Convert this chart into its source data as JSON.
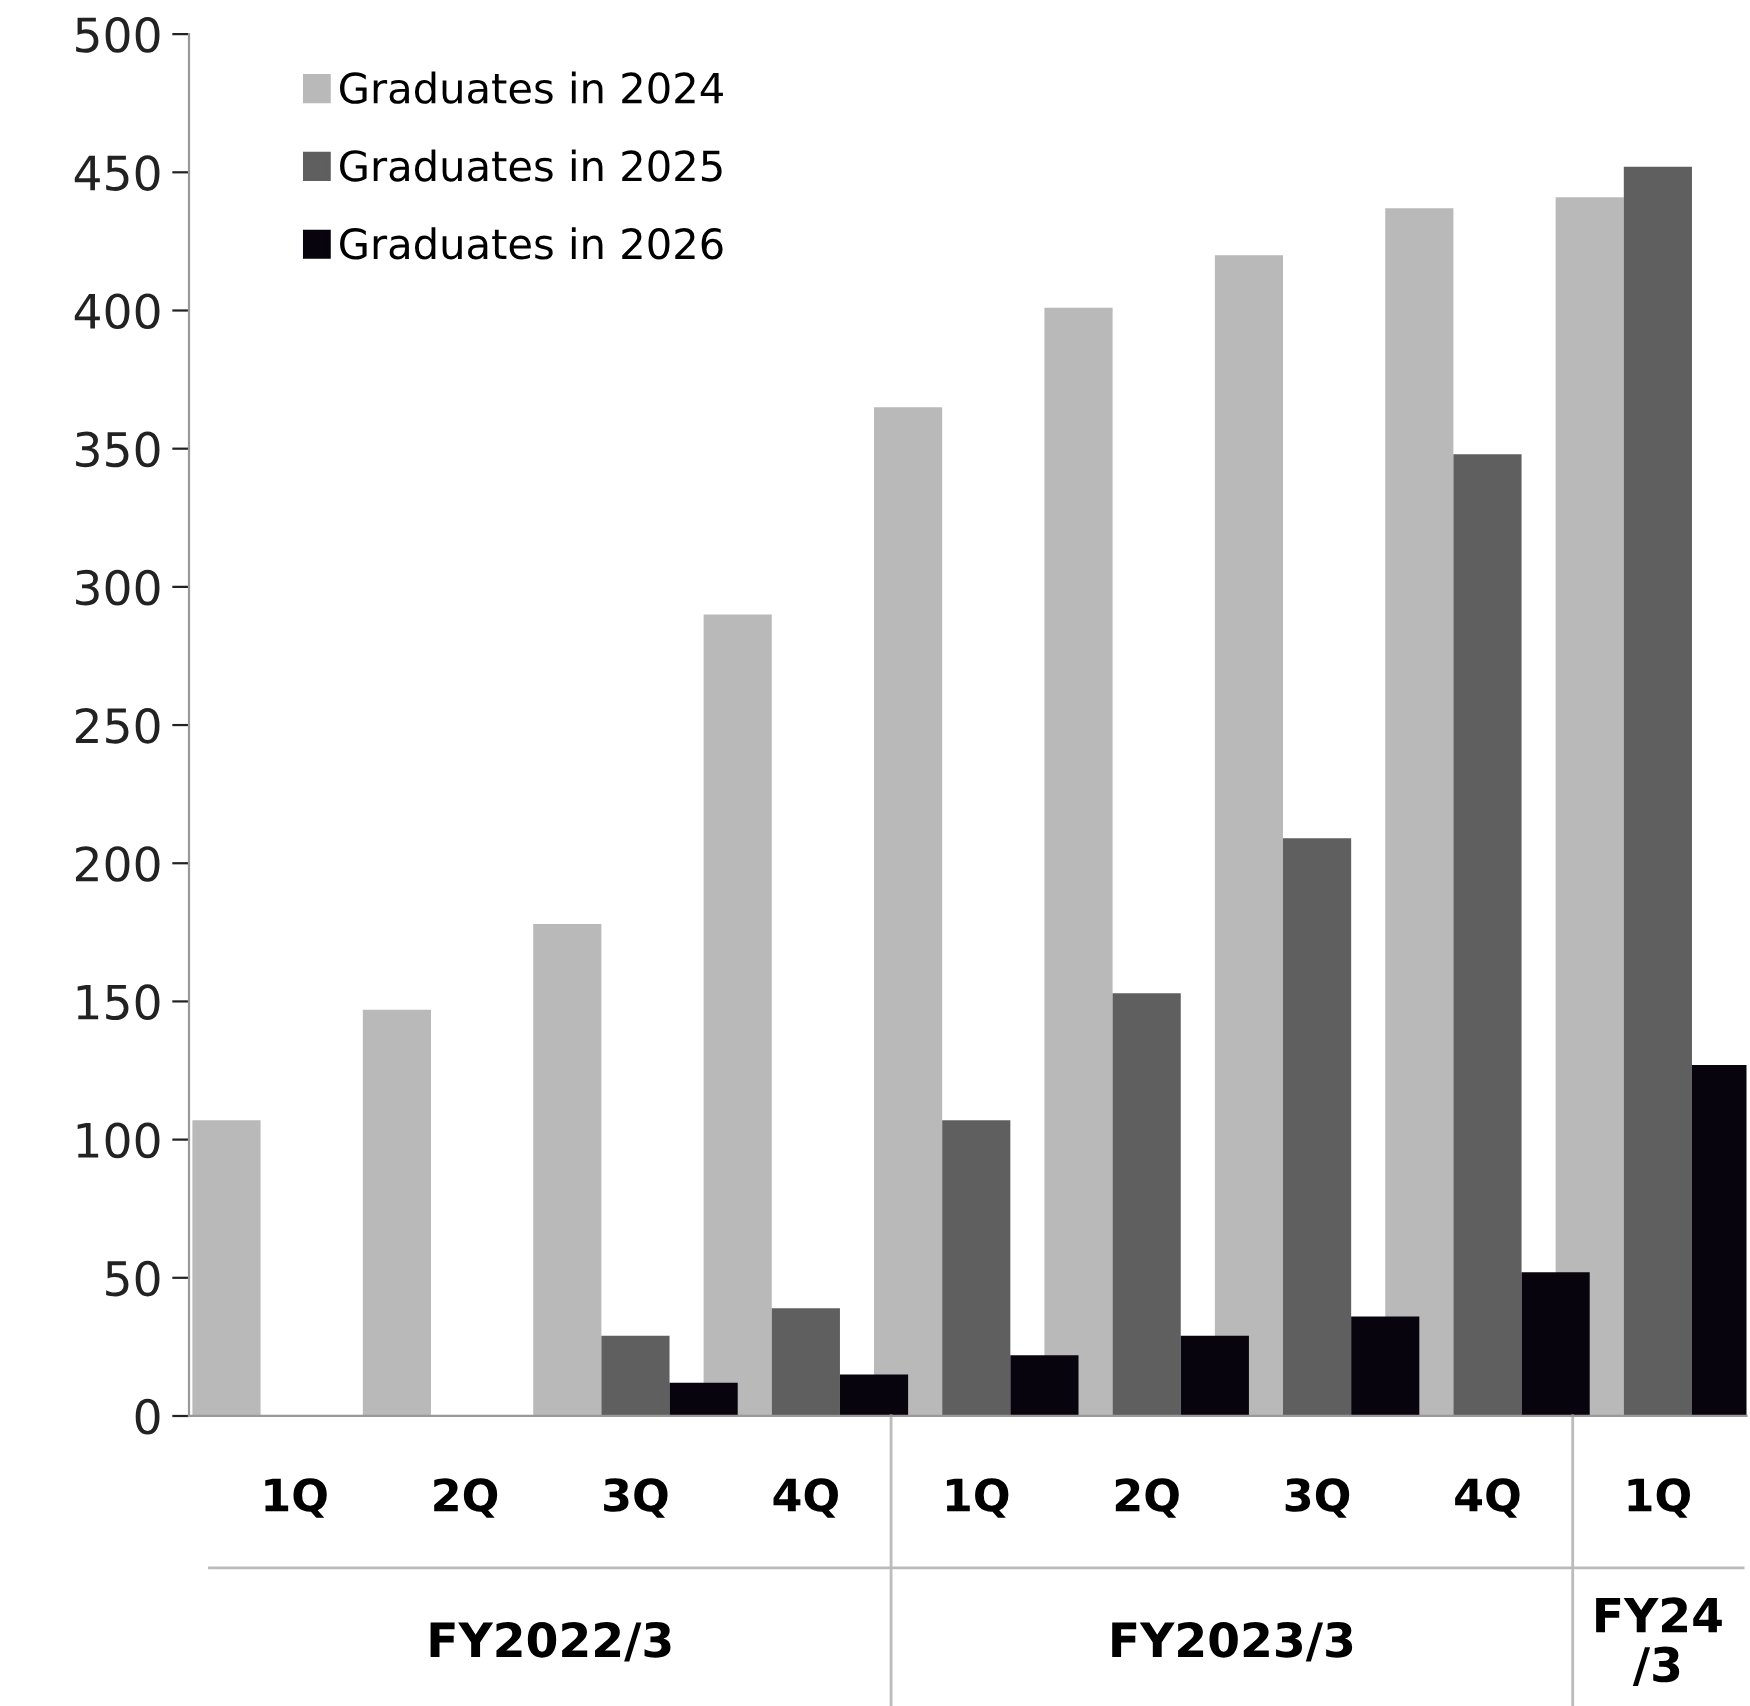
{
  "chart_data": {
    "type": "bar",
    "categories": [
      "1Q",
      "2Q",
      "3Q",
      "4Q",
      "1Q",
      "2Q",
      "3Q",
      "4Q",
      "1Q"
    ],
    "series": [
      {
        "name": "Graduates in 2024",
        "color": "#b9b9b9",
        "values": [
          107,
          147,
          178,
          290,
          365,
          401,
          420,
          437,
          441
        ]
      },
      {
        "name": "Graduates in 2025",
        "color": "#5f5f5f",
        "values": [
          null,
          null,
          29,
          39,
          107,
          153,
          209,
          348,
          452
        ]
      },
      {
        "name": "Graduates in 2026",
        "color": "#07040d",
        "values": [
          null,
          null,
          12,
          15,
          22,
          29,
          36,
          52,
          127
        ]
      }
    ],
    "annotations": [
      "FY2022/3",
      "FY2023/3",
      "FY24/3"
    ],
    "ylim": [
      0,
      500
    ],
    "yticks": [
      0,
      50,
      100,
      150,
      200,
      250,
      300,
      350,
      400,
      450,
      500
    ],
    "grid": false,
    "legend": "top left"
  }
}
